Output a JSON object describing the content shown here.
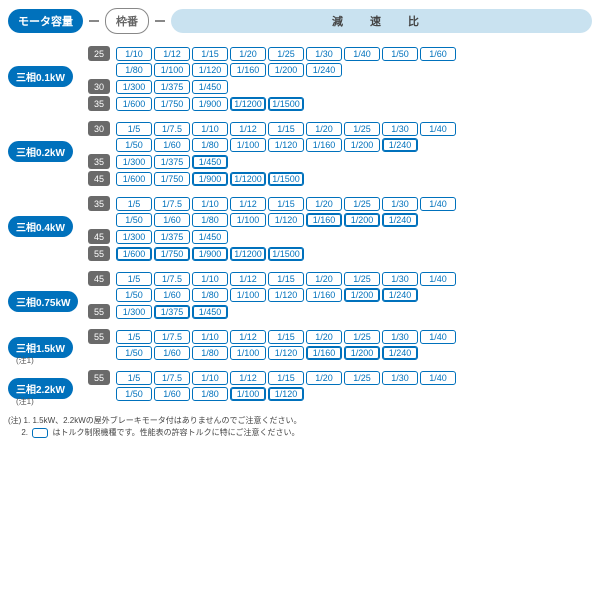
{
  "header": {
    "motor_capacity": "モータ容量",
    "frame": "枠番",
    "ratio": "減 速 比"
  },
  "groups": [
    {
      "label": "三相0.1kW",
      "labelTop": 20,
      "frames": [
        {
          "fr": "25",
          "rows": [
            [
              "1/10",
              "1/12",
              "1/15",
              "1/20",
              "1/25",
              "1/30",
              "1/40",
              "1/50",
              "1/60"
            ],
            [
              "1/80",
              "1/100",
              "1/120",
              "1/160",
              "1/200",
              "1/240"
            ]
          ]
        },
        {
          "fr": "30",
          "rows": [
            [
              "1/300",
              "1/375",
              "1/450"
            ]
          ]
        },
        {
          "fr": "35",
          "rows": [
            [
              "1/600",
              "1/750",
              "1/900",
              {
                "t": "1/1200",
                "h": 1
              },
              {
                "t": "1/1500",
                "h": 1
              }
            ]
          ]
        }
      ]
    },
    {
      "label": "三相0.2kW",
      "labelTop": 20,
      "frames": [
        {
          "fr": "30",
          "rows": [
            [
              "1/5",
              "1/7.5",
              "1/10",
              "1/12",
              "1/15",
              "1/20",
              "1/25",
              "1/30",
              "1/40"
            ],
            [
              "1/50",
              "1/60",
              "1/80",
              "1/100",
              "1/120",
              "1/160",
              "1/200",
              {
                "t": "1/240",
                "h": 1
              }
            ]
          ]
        },
        {
          "fr": "35",
          "rows": [
            [
              "1/300",
              "1/375",
              {
                "t": "1/450",
                "h": 1
              }
            ]
          ]
        },
        {
          "fr": "45",
          "rows": [
            [
              "1/600",
              "1/750",
              {
                "t": "1/900",
                "h": 1
              },
              {
                "t": "1/1200",
                "h": 1
              },
              {
                "t": "1/1500",
                "h": 1
              }
            ]
          ]
        }
      ]
    },
    {
      "label": "三相0.4kW",
      "labelTop": 20,
      "frames": [
        {
          "fr": "35",
          "rows": [
            [
              "1/5",
              "1/7.5",
              "1/10",
              "1/12",
              "1/15",
              "1/20",
              "1/25",
              "1/30",
              "1/40"
            ],
            [
              "1/50",
              "1/60",
              "1/80",
              "1/100",
              "1/120",
              {
                "t": "1/160",
                "h": 1
              },
              {
                "t": "1/200",
                "h": 1
              },
              {
                "t": "1/240",
                "h": 1
              }
            ]
          ]
        },
        {
          "fr": "45",
          "rows": [
            [
              "1/300",
              "1/375",
              "1/450"
            ]
          ]
        },
        {
          "fr": "55",
          "rows": [
            [
              {
                "t": "1/600",
                "h": 1
              },
              {
                "t": "1/750",
                "h": 1
              },
              {
                "t": "1/900",
                "h": 1
              },
              {
                "t": "1/1200",
                "h": 1
              },
              {
                "t": "1/1500",
                "h": 1
              }
            ]
          ]
        }
      ]
    },
    {
      "label": "三相0.75kW",
      "labelTop": 20,
      "frames": [
        {
          "fr": "45",
          "rows": [
            [
              "1/5",
              "1/7.5",
              "1/10",
              "1/12",
              "1/15",
              "1/20",
              "1/25",
              "1/30",
              "1/40"
            ],
            [
              "1/50",
              "1/60",
              "1/80",
              "1/100",
              "1/120",
              "1/160",
              {
                "t": "1/200",
                "h": 1
              },
              {
                "t": "1/240",
                "h": 1
              }
            ]
          ]
        },
        {
          "fr": "55",
          "rows": [
            [
              "1/300",
              {
                "t": "1/375",
                "h": 1
              },
              {
                "t": "1/450",
                "h": 1
              }
            ]
          ]
        }
      ]
    },
    {
      "label": "三相1.5kW",
      "note": "(注1)",
      "labelTop": 8,
      "frames": [
        {
          "fr": "55",
          "rows": [
            [
              "1/5",
              "1/7.5",
              "1/10",
              "1/12",
              "1/15",
              "1/20",
              "1/25",
              "1/30",
              "1/40"
            ],
            [
              "1/50",
              "1/60",
              "1/80",
              "1/100",
              "1/120",
              {
                "t": "1/160",
                "h": 1
              },
              {
                "t": "1/200",
                "h": 1
              },
              {
                "t": "1/240",
                "h": 1
              }
            ]
          ]
        }
      ]
    },
    {
      "label": "三相2.2kW",
      "note": "(注1)",
      "labelTop": 8,
      "frames": [
        {
          "fr": "55",
          "rows": [
            [
              "1/5",
              "1/7.5",
              "1/10",
              "1/12",
              "1/15",
              "1/20",
              "1/25",
              "1/30",
              "1/40"
            ],
            [
              "1/50",
              "1/60",
              "1/80",
              {
                "t": "1/100",
                "h": 1
              },
              {
                "t": "1/120",
                "h": 1
              }
            ]
          ]
        }
      ]
    }
  ],
  "footer": {
    "l1": "(注) 1. 1.5kW、2.2kWの屋外ブレーキモータ付はありませんのでご注意ください。",
    "l2a": "2. ",
    "l2b": " はトルク制限機種です。性能表の許容トルクに特にご注意ください。"
  }
}
